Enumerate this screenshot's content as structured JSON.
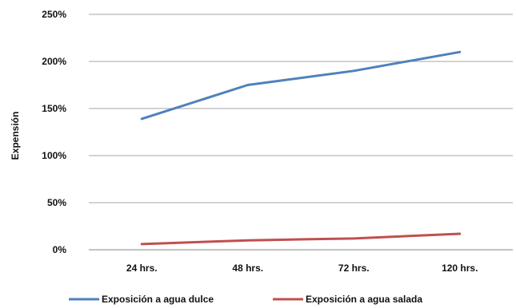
{
  "chart_data": {
    "type": "line",
    "title": "",
    "xlabel": "",
    "ylabel": "Expensión",
    "categories": [
      "24 hrs.",
      "48 hrs.",
      "72 hrs.",
      "120 hrs."
    ],
    "y_ticks": [
      "0%",
      "50%",
      "100%",
      "150%",
      "200%",
      "250%"
    ],
    "y_tick_values": [
      0,
      50,
      100,
      150,
      200,
      250
    ],
    "ylim": [
      0,
      250
    ],
    "y_unit": "%",
    "grid": "horizontal",
    "legend": "bottom",
    "series": [
      {
        "name": "Exposición a agua dulce",
        "color": "#4f81bd",
        "values": [
          139,
          175,
          190,
          210
        ]
      },
      {
        "name": "Exposición a agua salada",
        "color": "#c0504d",
        "values": [
          6,
          10,
          12,
          17
        ]
      }
    ]
  }
}
